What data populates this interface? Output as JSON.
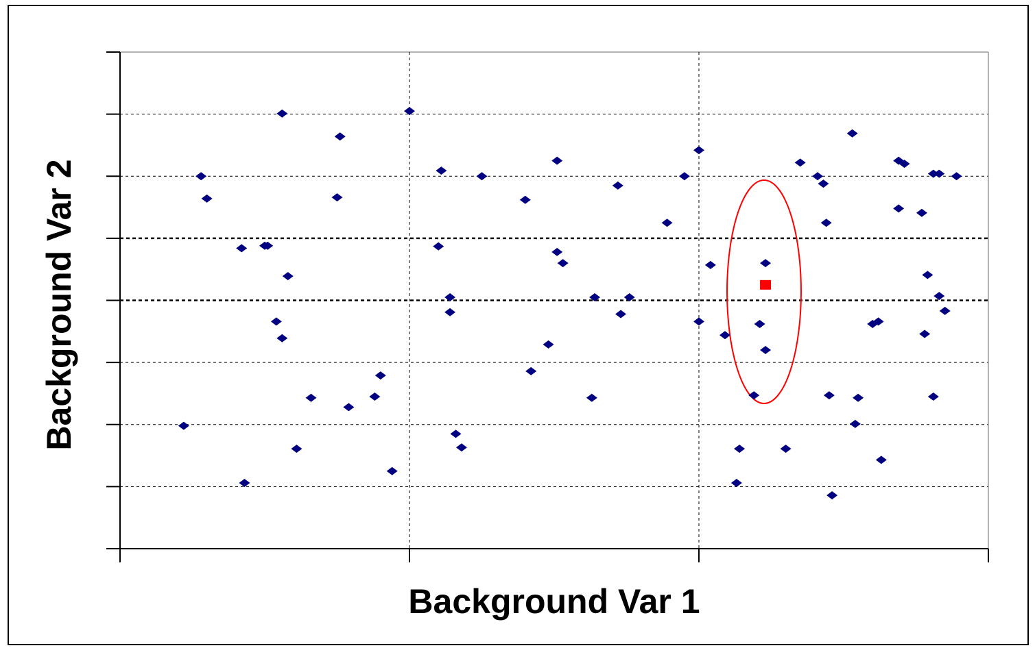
{
  "chart_data": {
    "type": "scatter",
    "x_label": "Background Var 1",
    "y_label": "Background Var 2",
    "xlim": [
      0,
      3
    ],
    "xticks": [
      0,
      1,
      2,
      3
    ],
    "ylim": [
      0,
      8
    ],
    "yticks": [
      0,
      1,
      2,
      3,
      4,
      5,
      6,
      7,
      8
    ],
    "grid": true,
    "series": [
      {
        "color": "#000080",
        "x": [
          0.22,
          0.28,
          0.3,
          0.42,
          0.43,
          0.5,
          0.51,
          0.54,
          0.56,
          0.56,
          0.58,
          0.61,
          0.66,
          0.75,
          0.76,
          0.79,
          0.88,
          0.9,
          0.94,
          1.0,
          1.1,
          1.11,
          1.14,
          1.14,
          1.16,
          1.18,
          1.25,
          1.4,
          1.42,
          1.48,
          1.51,
          1.51,
          1.53,
          1.63,
          1.64,
          1.72,
          1.73,
          1.76,
          1.89,
          1.95,
          2.0,
          2.0,
          2.04,
          2.09,
          2.13,
          2.14,
          2.19,
          2.21,
          2.23,
          2.23,
          2.3,
          2.35,
          2.41,
          2.43,
          2.44,
          2.45,
          2.46,
          2.53,
          2.54,
          2.55,
          2.6,
          2.62,
          2.63,
          2.69,
          2.69,
          2.71,
          2.77,
          2.78,
          2.79,
          2.81,
          2.81,
          2.83,
          2.83,
          2.85,
          2.89
        ],
        "values": [
          1.98,
          6.0,
          5.64,
          4.84,
          1.06,
          4.88,
          4.88,
          3.66,
          7.01,
          3.39,
          4.39,
          1.61,
          2.43,
          5.66,
          6.64,
          2.28,
          2.45,
          2.79,
          1.25,
          7.05,
          4.87,
          6.09,
          3.81,
          4.05,
          1.85,
          1.63,
          6.0,
          5.62,
          2.86,
          3.29,
          6.25,
          4.78,
          4.6,
          2.43,
          4.05,
          5.85,
          3.78,
          4.05,
          5.25,
          6.0,
          6.42,
          3.66,
          4.57,
          3.44,
          1.06,
          1.61,
          2.47,
          3.62,
          4.6,
          3.2,
          1.61,
          6.22,
          6.0,
          5.88,
          5.25,
          2.47,
          0.86,
          6.69,
          2.01,
          2.43,
          3.62,
          3.66,
          1.43,
          5.48,
          6.25,
          6.2,
          5.41,
          3.46,
          4.41,
          2.45,
          6.04,
          6.04,
          4.07,
          3.83,
          6.0
        ]
      },
      {
        "color": "#ff0000",
        "marker": "square",
        "x": [
          2.23
        ],
        "values": [
          4.25
        ]
      }
    ]
  }
}
